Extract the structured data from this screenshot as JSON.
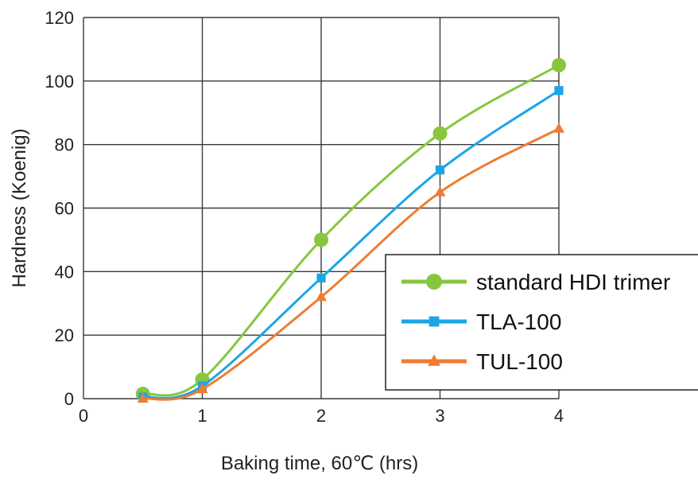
{
  "chart_data": {
    "type": "line",
    "xlabel": "Baking time, 60℃ (hrs)",
    "ylabel": "Hardness (Koenig)",
    "xlim": [
      0,
      4
    ],
    "ylim": [
      0,
      120
    ],
    "x_ticks": [
      0,
      1,
      2,
      3,
      4
    ],
    "y_ticks": [
      0,
      20,
      40,
      60,
      80,
      100,
      120
    ],
    "grid": true,
    "legend_position": "bottom-right",
    "series": [
      {
        "name": "standard HDI trimer",
        "color": "#88c640",
        "marker": "circle",
        "x": [
          0.5,
          1,
          2,
          3,
          4
        ],
        "y": [
          1.5,
          6,
          50,
          83.5,
          105
        ]
      },
      {
        "name": "TLA-100",
        "color": "#1aa6e6",
        "marker": "square",
        "x": [
          0.5,
          1,
          2,
          3,
          4
        ],
        "y": [
          0.5,
          4,
          38,
          72,
          97
        ]
      },
      {
        "name": "TUL-100",
        "color": "#ef7c33",
        "marker": "triangle",
        "x": [
          0.5,
          1,
          2,
          3,
          4
        ],
        "y": [
          0,
          3,
          32,
          65,
          85
        ]
      }
    ]
  }
}
